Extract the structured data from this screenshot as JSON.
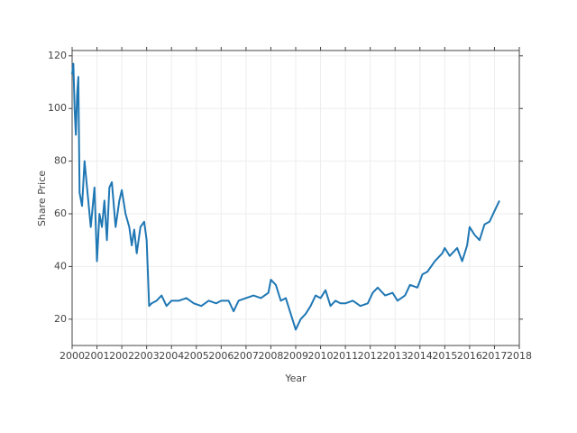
{
  "chart_data": {
    "type": "line",
    "x_label": "Year",
    "y_label": "Share Price",
    "color": "#1f77b4",
    "grid": true,
    "xlim": [
      2000,
      2018
    ],
    "xticks": [
      2000,
      2001,
      2002,
      2003,
      2004,
      2005,
      2006,
      2007,
      2008,
      2009,
      2010,
      2011,
      2012,
      2013,
      2014,
      2015,
      2016,
      2017,
      2018
    ],
    "ylim": [
      10,
      122
    ],
    "yticks": [
      20,
      40,
      60,
      80,
      100,
      120
    ],
    "x": [
      2000.0,
      2000.05,
      2000.1,
      2000.15,
      2000.2,
      2000.25,
      2000.3,
      2000.4,
      2000.5,
      2000.6,
      2000.75,
      2000.9,
      2001.0,
      2001.1,
      2001.2,
      2001.3,
      2001.4,
      2001.5,
      2001.6,
      2001.75,
      2001.9,
      2002.0,
      2002.15,
      2002.3,
      2002.4,
      2002.5,
      2002.6,
      2002.75,
      2002.9,
      2003.0,
      2003.1,
      2003.2,
      2003.4,
      2003.6,
      2003.8,
      2004.0,
      2004.3,
      2004.6,
      2004.9,
      2005.2,
      2005.5,
      2005.8,
      2006.0,
      2006.3,
      2006.5,
      2006.7,
      2007.0,
      2007.3,
      2007.6,
      2007.9,
      2008.0,
      2008.2,
      2008.4,
      2008.6,
      2008.8,
      2009.0,
      2009.2,
      2009.4,
      2009.6,
      2009.8,
      2010.0,
      2010.2,
      2010.4,
      2010.6,
      2010.8,
      2011.0,
      2011.3,
      2011.6,
      2011.9,
      2012.1,
      2012.3,
      2012.6,
      2012.9,
      2013.1,
      2013.4,
      2013.6,
      2013.9,
      2014.1,
      2014.3,
      2014.6,
      2014.9,
      2015.0,
      2015.2,
      2015.5,
      2015.7,
      2015.9,
      2016.0,
      2016.2,
      2016.4,
      2016.6,
      2016.8,
      2017.0,
      2017.2
    ],
    "values": [
      113,
      117,
      100,
      90,
      105,
      112,
      68,
      63,
      80,
      70,
      55,
      70,
      42,
      60,
      55,
      65,
      50,
      70,
      72,
      55,
      65,
      69,
      60,
      55,
      48,
      54,
      45,
      55,
      57,
      50,
      25,
      26,
      27,
      29,
      25,
      27,
      27,
      28,
      26,
      25,
      27,
      26,
      27,
      27,
      23,
      27,
      28,
      29,
      28,
      30,
      35,
      33,
      27,
      28,
      22,
      16,
      20,
      22,
      25,
      29,
      28,
      31,
      25,
      27,
      26,
      26,
      27,
      25,
      26,
      30,
      32,
      29,
      30,
      27,
      29,
      33,
      32,
      37,
      38,
      42,
      45,
      47,
      44,
      47,
      42,
      48,
      55,
      52,
      50,
      56,
      57,
      61,
      65
    ]
  }
}
